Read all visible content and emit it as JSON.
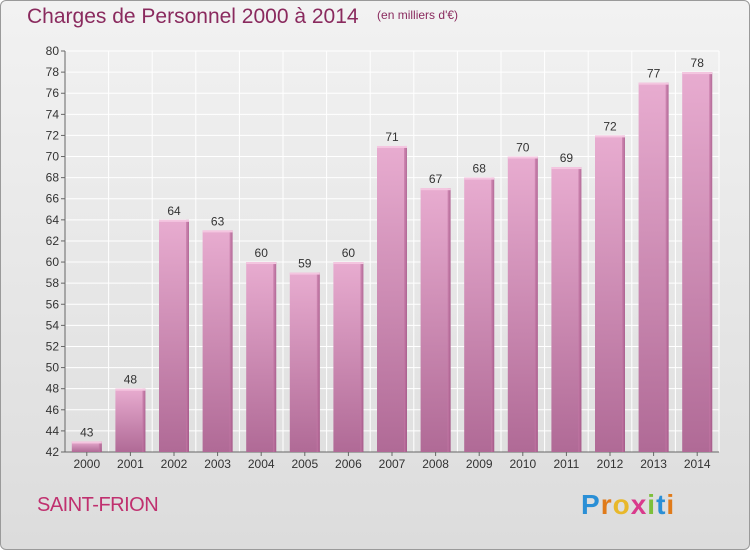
{
  "title": "Charges de Personnel 2000 à 2014",
  "unit": "(en milliers d'€)",
  "commune": "SAINT-FRION",
  "logo": {
    "letters": [
      {
        "ch": "P",
        "color": "#2a8fd6"
      },
      {
        "ch": "r",
        "color": "#e07b1a"
      },
      {
        "ch": "o",
        "color": "#e8b82a"
      },
      {
        "ch": "x",
        "color": "#d93a8c"
      },
      {
        "ch": "i",
        "color": "#7cbf3a"
      },
      {
        "ch": "t",
        "color": "#2a8fd6"
      },
      {
        "ch": "i",
        "color": "#e07b1a"
      }
    ]
  },
  "chart_data": {
    "type": "bar",
    "title": "Charges de Personnel 2000 à 2014",
    "categories": [
      "2000",
      "2001",
      "2002",
      "2003",
      "2004",
      "2005",
      "2006",
      "2007",
      "2008",
      "2009",
      "2010",
      "2011",
      "2012",
      "2013",
      "2014"
    ],
    "values": [
      43,
      48,
      64,
      63,
      60,
      59,
      60,
      71,
      67,
      68,
      70,
      69,
      72,
      77,
      78
    ],
    "ylim": [
      42,
      80
    ],
    "yticks": [
      42,
      44,
      46,
      48,
      50,
      52,
      54,
      56,
      58,
      60,
      62,
      64,
      66,
      68,
      70,
      72,
      74,
      76,
      78,
      80
    ],
    "grid": true,
    "bar_color": "#d98fb8"
  }
}
